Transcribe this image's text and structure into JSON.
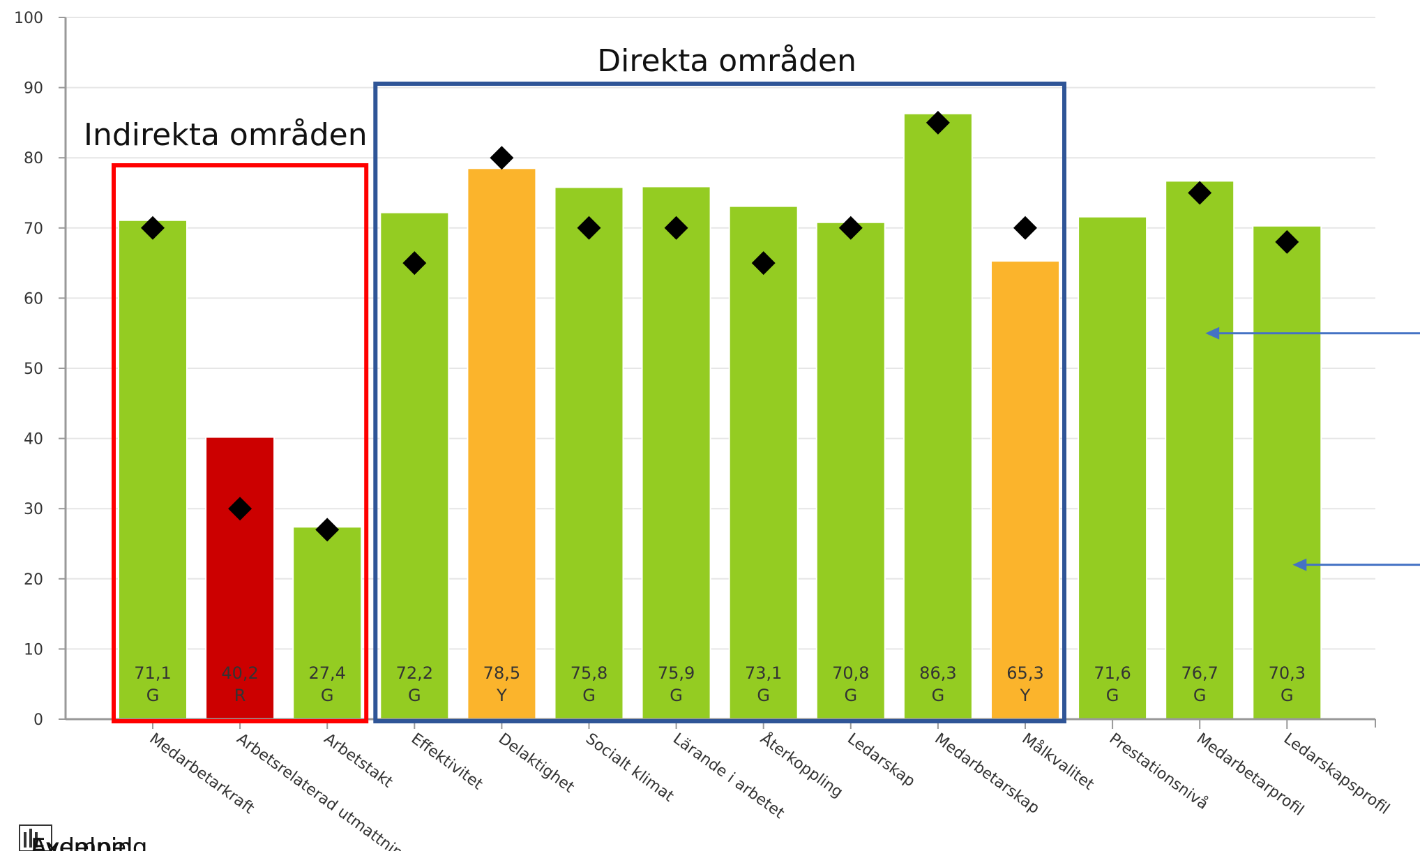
{
  "chart_data": {
    "type": "bar",
    "title": "",
    "xlabel": "",
    "ylabel": "",
    "ylim": [
      0,
      100
    ],
    "yticks": [
      0,
      10,
      20,
      30,
      40,
      50,
      60,
      70,
      80,
      90,
      100
    ],
    "grid": true,
    "categories": [
      "Medarbetarkraft",
      "Arbetsrelaterad utmattning",
      "Arbetstakt",
      "Effektivitet",
      "Delaktighet",
      "Socialt klimat",
      "Lärande i arbetet",
      "Återkoppling",
      "Ledarskap",
      "Medarbetarskap",
      "Målkvalitet",
      "Prestationsnivå",
      "Medarbetarprofil",
      "Ledarskapsprofil"
    ],
    "values": [
      71.1,
      40.2,
      27.4,
      72.2,
      78.5,
      75.8,
      75.9,
      73.1,
      70.8,
      86.3,
      65.3,
      71.6,
      76.7,
      70.3
    ],
    "value_labels": [
      "71,1",
      "40,2",
      "27,4",
      "72,2",
      "78,5",
      "75,8",
      "75,9",
      "73,1",
      "70,8",
      "86,3",
      "65,3",
      "71,6",
      "76,7",
      "70,3"
    ],
    "status": [
      "G",
      "R",
      "G",
      "G",
      "Y",
      "G",
      "G",
      "G",
      "G",
      "G",
      "Y",
      "G",
      "G",
      "G"
    ],
    "status_colors": {
      "G": "#94cc22",
      "R": "#cc0000",
      "Y": "#fbb42c"
    },
    "markers": [
      70,
      30,
      27,
      65,
      80,
      70,
      70,
      65,
      70,
      85,
      70,
      null,
      75,
      68
    ],
    "groups": [
      {
        "label": "Indirekta områden",
        "color": "#ff0000",
        "from": 0,
        "to": 2
      },
      {
        "label": "Direkta områden",
        "color": "#2f5597",
        "from": 3,
        "to": 10
      }
    ],
    "arrows": [
      {
        "category_index": 12,
        "y": 55
      },
      {
        "category_index": 13,
        "y": 22
      }
    ]
  },
  "footer": {
    "text": "Exempel",
    "overlay_text": "Avdelning"
  },
  "colors": {
    "axis": "#999999",
    "grid": "#e6e6e6",
    "arrow": "#4472c4",
    "marker": "#000000"
  }
}
